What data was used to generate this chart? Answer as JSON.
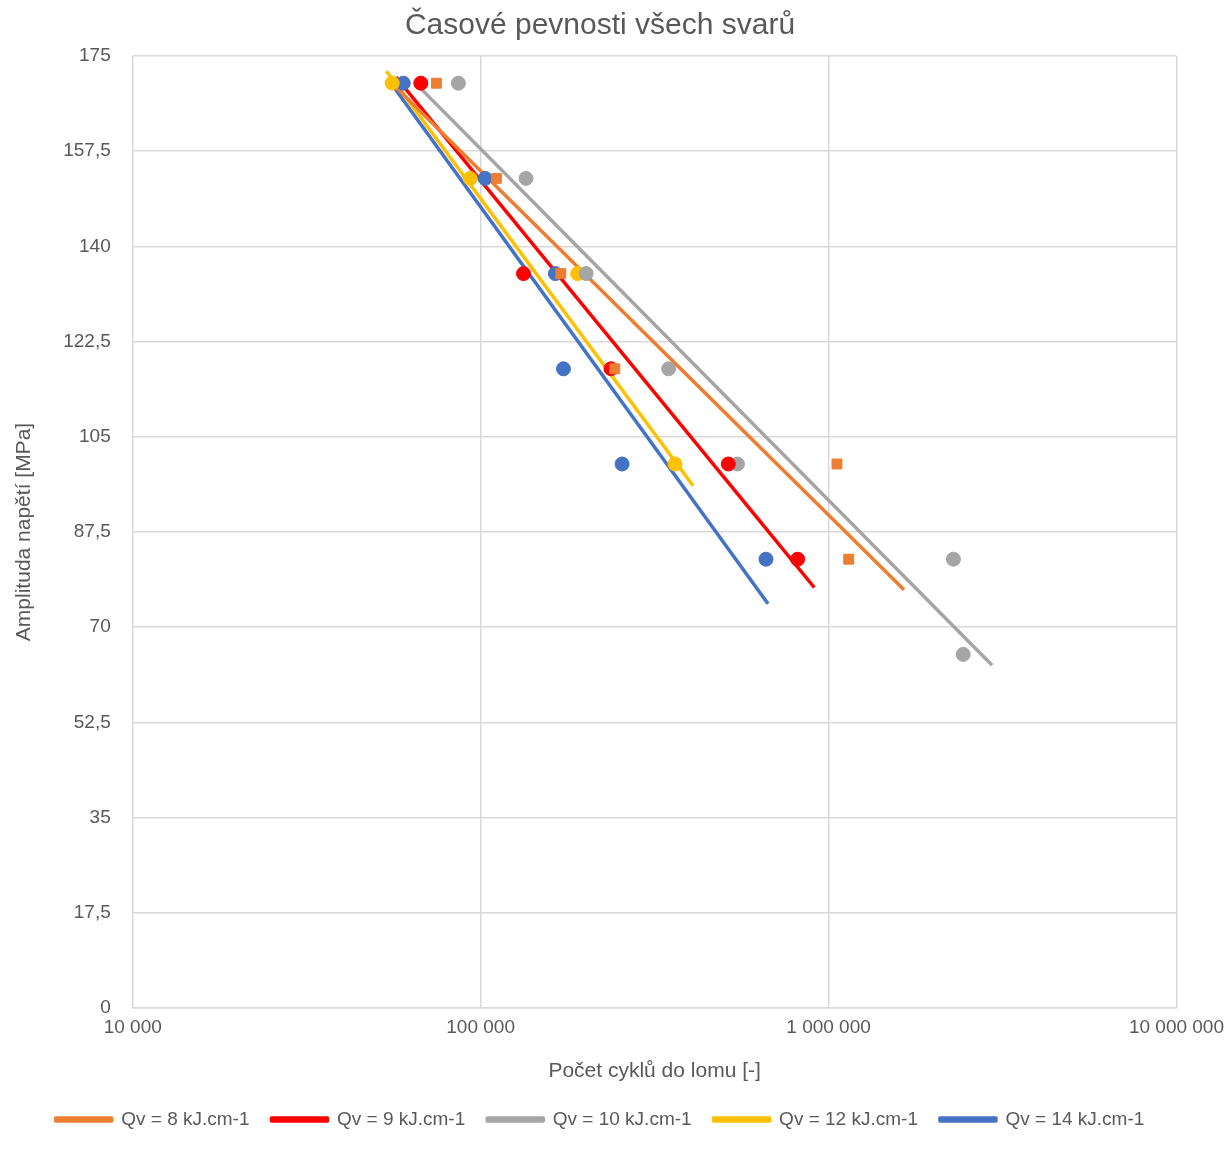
{
  "chart_data": {
    "type": "scatter",
    "title": "Časové pevnosti všech svarů",
    "xlabel": "Počet cyklů do lomu [-]",
    "ylabel": "Amplituda napětí [MPa]",
    "log": "x",
    "xlim": [
      10000,
      10000000
    ],
    "xticks": [
      {
        "value": 10000,
        "label": "10 000"
      },
      {
        "value": 100000,
        "label": "100 000"
      },
      {
        "value": 1000000,
        "label": "1 000 000"
      },
      {
        "value": 10000000,
        "label": "10 000 000"
      }
    ],
    "ylim": [
      0,
      175
    ],
    "yticks": [
      0,
      {
        "value": 17.5,
        "label": "17,5"
      },
      35,
      {
        "value": 52.5,
        "label": "52,5"
      },
      70,
      {
        "value": 87.5,
        "label": "87,5"
      },
      105,
      {
        "value": 122.5,
        "label": "122,5"
      },
      140,
      {
        "value": 157.5,
        "label": "157,5"
      },
      175
    ],
    "grid": true,
    "legend": "bottom",
    "series": [
      {
        "type": "scatter",
        "marker": "square",
        "color": "#ed7d31",
        "x": [
          74600,
          111000,
          170000,
          243000,
          1057000,
          1143000
        ],
        "values": [
          170,
          152.5,
          135,
          117.5,
          100,
          82.5
        ]
      },
      {
        "type": "scatter",
        "marker": "circle",
        "color": "#ff0000",
        "x": [
          67300,
          132800,
          237000,
          515000,
          815000
        ],
        "values": [
          170,
          135,
          117.5,
          100,
          82.5
        ]
      },
      {
        "type": "scatter",
        "marker": "circle",
        "color": "#a5a5a5",
        "x": [
          86300,
          135000,
          201000,
          347000,
          547000,
          2285000,
          2438000
        ],
        "values": [
          170,
          152.5,
          135,
          117.5,
          100,
          82.5,
          65
        ]
      },
      {
        "type": "scatter",
        "marker": "circle",
        "color": "#ffc000",
        "x": [
          55700,
          93300,
          190000,
          362000
        ],
        "values": [
          170,
          152.5,
          135,
          100
        ]
      },
      {
        "type": "scatter",
        "marker": "circle",
        "color": "#4472c4",
        "x": [
          59900,
          103000,
          164000,
          173000,
          255000,
          661000
        ],
        "values": [
          170,
          152.5,
          135,
          117.5,
          100,
          82.5
        ]
      },
      {
        "type": "line",
        "name": "Qv = 8 kJ.cm-1",
        "color": "#ed7d31",
        "marker": "none",
        "x": [
          54600,
          1648000
        ],
        "values": [
          170.5,
          76.9
        ]
      },
      {
        "type": "line",
        "name": "Qv = 9 kJ.cm-1",
        "color": "#ff0000",
        "marker": "none",
        "x": [
          57100,
          910000
        ],
        "values": [
          171.1,
          77.3
        ]
      },
      {
        "type": "line",
        "name": "Qv = 10 kJ.cm-1",
        "color": "#a5a5a5",
        "marker": "none",
        "x": [
          65900,
          2952000
        ],
        "values": [
          169.6,
          63
        ]
      },
      {
        "type": "line",
        "name": "Qv = 12 kJ.cm-1",
        "color": "#ffc000",
        "marker": "none",
        "x": [
          53600,
          408000
        ],
        "values": [
          172.2,
          96
        ]
      },
      {
        "type": "line",
        "name": "Qv = 14 kJ.cm-1",
        "color": "#4472c4",
        "marker": "none",
        "x": [
          56400,
          670000
        ],
        "values": [
          169.2,
          74.3
        ]
      }
    ]
  }
}
